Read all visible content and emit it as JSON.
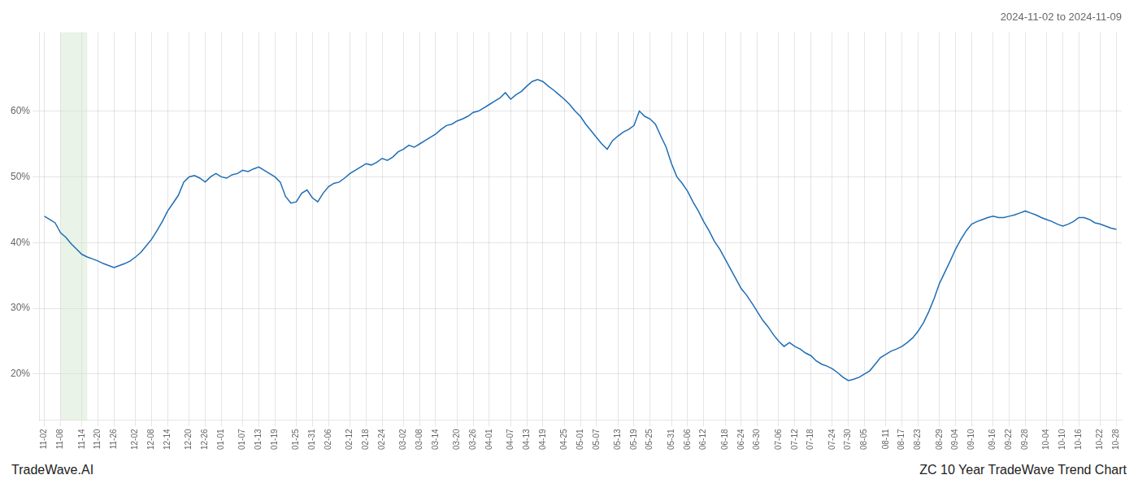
{
  "chart_data": {
    "type": "line",
    "title": "2024-11-02 to 2024-11-09",
    "annotations": [
      "TradeWave.AI",
      "ZC 10 Year TradeWave Trend Chart"
    ],
    "color": "#1f6db5",
    "grid": true,
    "highlight": {
      "from": 3,
      "to": 8,
      "color": "#d4e8d0"
    },
    "ylim": [
      0.13,
      0.72
    ],
    "yticks": [
      {
        "value": 0.2,
        "label": "20%"
      },
      {
        "value": 0.3,
        "label": "30%"
      },
      {
        "value": 0.4,
        "label": "40%"
      },
      {
        "value": 0.5,
        "label": "50%"
      },
      {
        "value": 0.6,
        "label": "60%"
      }
    ],
    "categories": [
      "11-02",
      null,
      null,
      "11-08",
      null,
      null,
      null,
      "11-14",
      null,
      null,
      "11-20",
      null,
      null,
      "11-26",
      null,
      null,
      null,
      "12-02",
      null,
      null,
      "12-08",
      null,
      null,
      "12-14",
      null,
      null,
      null,
      "12-20",
      null,
      null,
      "12-26",
      null,
      null,
      "01-01",
      null,
      null,
      null,
      "01-07",
      null,
      null,
      "01-13",
      null,
      null,
      "01-19",
      null,
      null,
      null,
      "01-25",
      null,
      null,
      "01-31",
      null,
      null,
      "02-06",
      null,
      null,
      null,
      "02-12",
      null,
      null,
      "02-18",
      null,
      null,
      "02-24",
      null,
      null,
      null,
      "03-02",
      null,
      null,
      "03-08",
      null,
      null,
      "03-14",
      null,
      null,
      null,
      "03-20",
      null,
      null,
      "03-26",
      null,
      null,
      "04-01",
      null,
      null,
      null,
      "04-07",
      null,
      null,
      "04-13",
      null,
      null,
      "04-19",
      null,
      null,
      null,
      "04-25",
      null,
      null,
      "05-01",
      null,
      null,
      "05-07",
      null,
      null,
      null,
      "05-13",
      null,
      null,
      "05-19",
      null,
      null,
      "05-25",
      null,
      null,
      null,
      "05-31",
      null,
      null,
      "06-06",
      null,
      null,
      "06-12",
      null,
      null,
      null,
      "06-18",
      null,
      null,
      "06-24",
      null,
      null,
      "06-30",
      null,
      null,
      null,
      "07-06",
      null,
      null,
      "07-12",
      null,
      null,
      "07-18",
      null,
      null,
      null,
      "07-24",
      null,
      null,
      "07-30",
      null,
      null,
      "08-05",
      null,
      null,
      null,
      "08-11",
      null,
      null,
      "08-17",
      null,
      null,
      "08-23",
      null,
      null,
      null,
      "08-29",
      null,
      null,
      "09-04",
      null,
      null,
      "09-10",
      null,
      null,
      null,
      "09-16",
      null,
      null,
      "09-22",
      null,
      null,
      "09-28",
      null,
      null,
      null,
      "10-04",
      null,
      null,
      "10-10",
      null,
      null,
      "10-16",
      null,
      null,
      null,
      "10-22",
      null,
      null,
      "10-28"
    ],
    "values": [
      0.44,
      0.435,
      0.43,
      0.415,
      0.408,
      0.398,
      0.39,
      0.382,
      0.378,
      0.375,
      0.372,
      0.368,
      0.365,
      0.362,
      0.365,
      0.368,
      0.372,
      0.378,
      0.385,
      0.395,
      0.405,
      0.418,
      0.432,
      0.448,
      0.46,
      0.472,
      0.492,
      0.5,
      0.502,
      0.498,
      0.492,
      0.5,
      0.505,
      0.5,
      0.498,
      0.503,
      0.505,
      0.51,
      0.508,
      0.512,
      0.515,
      0.51,
      0.505,
      0.5,
      0.492,
      0.47,
      0.46,
      0.462,
      0.475,
      0.48,
      0.468,
      0.462,
      0.475,
      0.485,
      0.49,
      0.492,
      0.498,
      0.505,
      0.51,
      0.515,
      0.52,
      0.518,
      0.522,
      0.528,
      0.525,
      0.53,
      0.538,
      0.542,
      0.548,
      0.545,
      0.55,
      0.555,
      0.56,
      0.565,
      0.572,
      0.578,
      0.58,
      0.585,
      0.588,
      0.592,
      0.598,
      0.6,
      0.605,
      0.61,
      0.615,
      0.62,
      0.628,
      0.618,
      0.625,
      0.63,
      0.638,
      0.645,
      0.648,
      0.645,
      0.638,
      0.632,
      0.625,
      0.618,
      0.61,
      0.6,
      0.592,
      0.58,
      0.57,
      0.56,
      0.55,
      0.542,
      0.555,
      0.562,
      0.568,
      0.572,
      0.578,
      0.6,
      0.592,
      0.588,
      0.58,
      0.562,
      0.545,
      0.52,
      0.5,
      0.49,
      0.478,
      0.462,
      0.448,
      0.432,
      0.418,
      0.402,
      0.39,
      0.375,
      0.36,
      0.345,
      0.33,
      0.32,
      0.308,
      0.295,
      0.282,
      0.272,
      0.26,
      0.25,
      0.242,
      0.248,
      0.242,
      0.238,
      0.232,
      0.228,
      0.22,
      0.215,
      0.212,
      0.208,
      0.202,
      0.195,
      0.19,
      0.192,
      0.195,
      0.2,
      0.205,
      0.215,
      0.225,
      0.23,
      0.235,
      0.238,
      0.242,
      0.248,
      0.255,
      0.265,
      0.278,
      0.295,
      0.315,
      0.338,
      0.355,
      0.372,
      0.39,
      0.405,
      0.418,
      0.428,
      0.432,
      0.435,
      0.438,
      0.44,
      0.438,
      0.438,
      0.44,
      0.442,
      0.445,
      0.448,
      0.445,
      0.442,
      0.438,
      0.435,
      0.432,
      0.428,
      0.425,
      0.428,
      0.432,
      0.438,
      0.438,
      0.435,
      0.43,
      0.428,
      0.425,
      0.422,
      0.42
    ]
  }
}
